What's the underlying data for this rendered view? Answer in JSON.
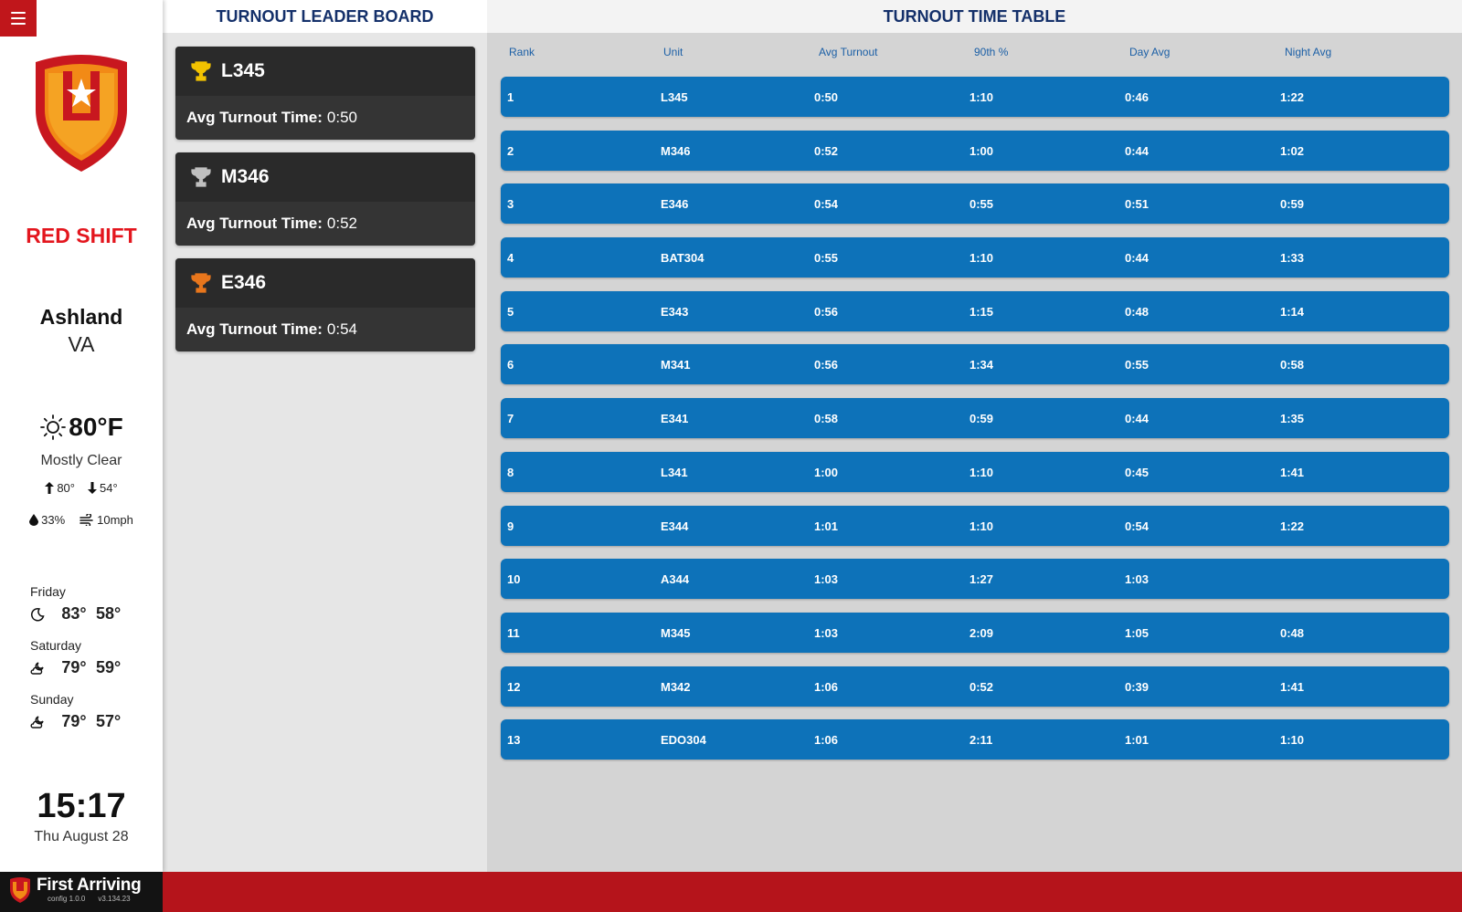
{
  "sidebar": {
    "shift": "RED SHIFT",
    "city": "Ashland",
    "state": "VA",
    "weather": {
      "temp": "80°F",
      "condition": "Mostly Clear",
      "high": "80°",
      "low": "54°",
      "humidity": "33%",
      "wind": "10mph"
    },
    "forecast": [
      {
        "day": "Friday",
        "high": "83°",
        "low": "58°",
        "icon": "moon-icon"
      },
      {
        "day": "Saturday",
        "high": "79°",
        "low": "59°",
        "icon": "cloud-moon-icon"
      },
      {
        "day": "Sunday",
        "high": "79°",
        "low": "57°",
        "icon": "cloud-moon-icon"
      }
    ],
    "time": "15:17",
    "date": "Thu August 28"
  },
  "leaderboard": {
    "title": "TURNOUT LEADER BOARD",
    "label": "Avg Turnout Time:",
    "cards": [
      {
        "unit": "L345",
        "time": "0:50",
        "trophy": "gold"
      },
      {
        "unit": "M346",
        "time": "0:52",
        "trophy": "silver"
      },
      {
        "unit": "E346",
        "time": "0:54",
        "trophy": "bronze"
      }
    ]
  },
  "timetable": {
    "title": "TURNOUT TIME TABLE",
    "columns": [
      "Rank",
      "Unit",
      "Avg Turnout",
      "90th %",
      "Day Avg",
      "Night Avg"
    ],
    "rows": [
      [
        "1",
        "L345",
        "0:50",
        "1:10",
        "0:46",
        "1:22"
      ],
      [
        "2",
        "M346",
        "0:52",
        "1:00",
        "0:44",
        "1:02"
      ],
      [
        "3",
        "E346",
        "0:54",
        "0:55",
        "0:51",
        "0:59"
      ],
      [
        "4",
        "BAT304",
        "0:55",
        "1:10",
        "0:44",
        "1:33"
      ],
      [
        "5",
        "E343",
        "0:56",
        "1:15",
        "0:48",
        "1:14"
      ],
      [
        "6",
        "M341",
        "0:56",
        "1:34",
        "0:55",
        "0:58"
      ],
      [
        "7",
        "E341",
        "0:58",
        "0:59",
        "0:44",
        "1:35"
      ],
      [
        "8",
        "L341",
        "1:00",
        "1:10",
        "0:45",
        "1:41"
      ],
      [
        "9",
        "E344",
        "1:01",
        "1:10",
        "0:54",
        "1:22"
      ],
      [
        "10",
        "A344",
        "1:03",
        "1:27",
        "1:03",
        ""
      ],
      [
        "11",
        "M345",
        "1:03",
        "2:09",
        "1:05",
        "0:48"
      ],
      [
        "12",
        "M342",
        "1:06",
        "0:52",
        "0:39",
        "1:41"
      ],
      [
        "13",
        "EDO304",
        "1:06",
        "2:11",
        "1:01",
        "1:10"
      ]
    ]
  },
  "footer": {
    "brand": "First Arriving",
    "config": "config 1.0.0",
    "version": "v3.134.23"
  },
  "colors": {
    "accent_red": "#e3161e",
    "footer_red": "#b5141b",
    "row_blue": "#0d72b9",
    "header_navy": "#14306a",
    "gold": "#f2c200",
    "silver": "#c0c0c0",
    "bronze": "#e8761c"
  }
}
